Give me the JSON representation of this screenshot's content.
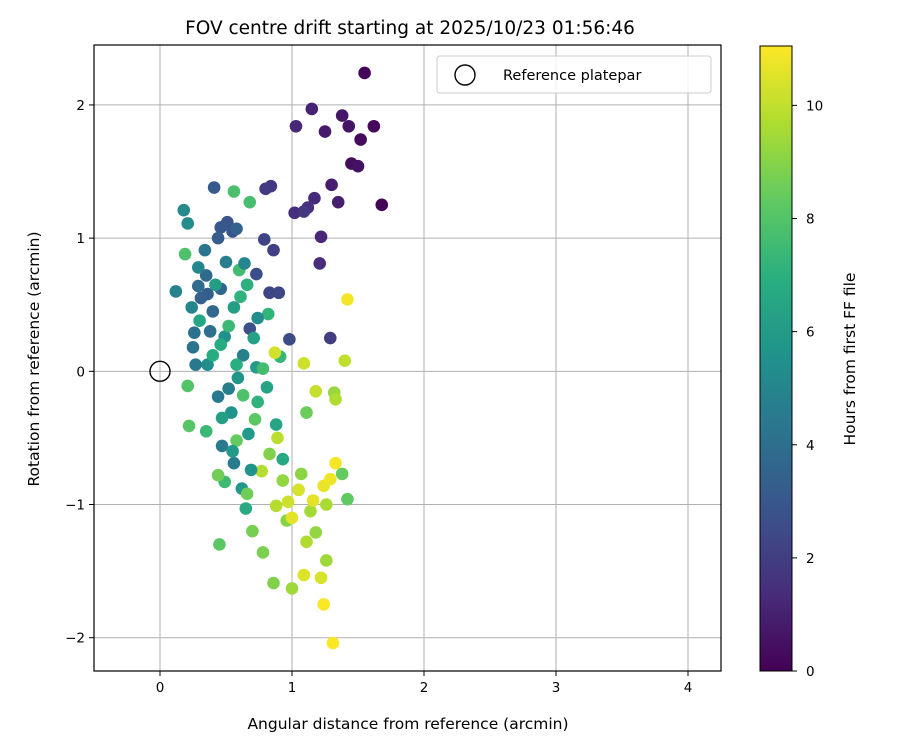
{
  "chart_data": {
    "type": "scatter",
    "title": "FOV centre drift starting at 2025/10/23 01:56:46",
    "xlabel": "Angular distance from reference (arcmin)",
    "ylabel": "Rotation from reference (arcmin)",
    "xlim": [
      -0.5,
      4.25
    ],
    "ylim": [
      -2.25,
      2.45
    ],
    "xticks": [
      0,
      1,
      2,
      3,
      4
    ],
    "yticks": [
      -2,
      -1,
      0,
      1,
      2
    ],
    "xtick_labels": [
      "0",
      "1",
      "2",
      "3",
      "4"
    ],
    "ytick_labels": [
      "−2",
      "−1",
      "0",
      "1",
      "2"
    ],
    "grid": true,
    "legend": {
      "placement": "top-right",
      "entries": [
        {
          "label": "Reference platepar",
          "marker": "open-circle"
        }
      ]
    },
    "reference_point": {
      "x": 0,
      "y": 0
    },
    "colorbar": {
      "label": "Hours from first FF file",
      "colormap": "viridis",
      "range": [
        0,
        11.05
      ],
      "ticks": [
        0,
        2,
        4,
        6,
        8,
        10
      ],
      "tick_labels": [
        "0",
        "2",
        "4",
        "6",
        "8",
        "10"
      ]
    },
    "points": [
      {
        "x": 1.55,
        "y": 2.24,
        "hours": 0.1
      },
      {
        "x": 1.68,
        "y": 1.25,
        "hours": 0.1
      },
      {
        "x": 1.62,
        "y": 1.84,
        "hours": 0.2
      },
      {
        "x": 1.52,
        "y": 1.74,
        "hours": 0.3
      },
      {
        "x": 1.45,
        "y": 1.56,
        "hours": 0.4
      },
      {
        "x": 1.5,
        "y": 1.54,
        "hours": 0.5
      },
      {
        "x": 1.43,
        "y": 1.84,
        "hours": 0.6
      },
      {
        "x": 1.38,
        "y": 1.92,
        "hours": 0.7
      },
      {
        "x": 1.25,
        "y": 1.8,
        "hours": 0.8
      },
      {
        "x": 1.3,
        "y": 1.4,
        "hours": 0.9
      },
      {
        "x": 1.35,
        "y": 1.27,
        "hours": 1.0
      },
      {
        "x": 1.15,
        "y": 1.97,
        "hours": 1.1
      },
      {
        "x": 1.03,
        "y": 1.84,
        "hours": 1.2
      },
      {
        "x": 1.22,
        "y": 1.01,
        "hours": 1.2
      },
      {
        "x": 1.17,
        "y": 1.3,
        "hours": 1.3
      },
      {
        "x": 1.21,
        "y": 0.81,
        "hours": 1.4
      },
      {
        "x": 1.12,
        "y": 1.23,
        "hours": 1.5
      },
      {
        "x": 1.02,
        "y": 1.19,
        "hours": 1.5
      },
      {
        "x": 1.09,
        "y": 1.2,
        "hours": 1.7
      },
      {
        "x": 0.84,
        "y": 1.39,
        "hours": 1.8
      },
      {
        "x": 0.8,
        "y": 1.37,
        "hours": 1.9
      },
      {
        "x": 1.29,
        "y": 0.25,
        "hours": 2.0
      },
      {
        "x": 0.86,
        "y": 0.91,
        "hours": 2.1
      },
      {
        "x": 0.79,
        "y": 0.99,
        "hours": 2.2
      },
      {
        "x": 0.83,
        "y": 0.59,
        "hours": 2.3
      },
      {
        "x": 0.9,
        "y": 0.59,
        "hours": 2.4
      },
      {
        "x": 0.98,
        "y": 0.24,
        "hours": 2.5
      },
      {
        "x": 0.73,
        "y": 0.73,
        "hours": 2.6
      },
      {
        "x": 0.68,
        "y": 0.32,
        "hours": 2.7
      },
      {
        "x": 0.55,
        "y": 1.05,
        "hours": 2.8
      },
      {
        "x": 0.51,
        "y": 1.12,
        "hours": 2.9
      },
      {
        "x": 0.46,
        "y": 1.08,
        "hours": 3.0
      },
      {
        "x": 0.41,
        "y": 1.38,
        "hours": 3.1
      },
      {
        "x": 0.44,
        "y": 1.0,
        "hours": 3.2
      },
      {
        "x": 0.36,
        "y": 0.58,
        "hours": 3.3
      },
      {
        "x": 0.31,
        "y": 0.55,
        "hours": 3.4
      },
      {
        "x": 0.58,
        "y": 1.07,
        "hours": 3.5
      },
      {
        "x": 0.46,
        "y": 0.62,
        "hours": 3.6
      },
      {
        "x": 0.4,
        "y": 0.45,
        "hours": 3.7
      },
      {
        "x": 0.35,
        "y": 0.72,
        "hours": 3.8
      },
      {
        "x": 0.29,
        "y": 0.64,
        "hours": 3.9
      },
      {
        "x": 0.38,
        "y": 0.3,
        "hours": 4.0
      },
      {
        "x": 0.26,
        "y": 0.29,
        "hours": 4.1
      },
      {
        "x": 0.25,
        "y": 0.18,
        "hours": 4.2
      },
      {
        "x": 0.34,
        "y": 0.91,
        "hours": 4.3
      },
      {
        "x": 0.44,
        "y": -0.19,
        "hours": 4.4
      },
      {
        "x": 0.47,
        "y": -0.56,
        "hours": 4.5
      },
      {
        "x": 0.56,
        "y": -0.69,
        "hours": 4.6
      },
      {
        "x": 0.52,
        "y": -0.13,
        "hours": 4.7
      },
      {
        "x": 0.63,
        "y": 0.12,
        "hours": 4.8
      },
      {
        "x": 0.12,
        "y": 0.6,
        "hours": 4.9
      },
      {
        "x": 0.24,
        "y": 0.48,
        "hours": 5.0
      },
      {
        "x": 0.29,
        "y": 0.78,
        "hours": 5.1
      },
      {
        "x": 0.18,
        "y": 1.21,
        "hours": 5.2
      },
      {
        "x": 0.21,
        "y": 1.11,
        "hours": 5.3
      },
      {
        "x": 0.36,
        "y": 0.05,
        "hours": 5.4
      },
      {
        "x": 0.49,
        "y": 0.26,
        "hours": 5.5
      },
      {
        "x": 0.54,
        "y": -0.31,
        "hours": 5.6
      },
      {
        "x": 0.59,
        "y": -0.05,
        "hours": 5.7
      },
      {
        "x": 0.62,
        "y": -0.88,
        "hours": 5.8
      },
      {
        "x": 0.67,
        "y": -0.47,
        "hours": 5.9
      },
      {
        "x": 0.73,
        "y": 0.03,
        "hours": 6.0
      },
      {
        "x": 0.42,
        "y": 0.65,
        "hours": 6.1
      },
      {
        "x": 0.56,
        "y": 0.48,
        "hours": 6.2
      },
      {
        "x": 0.71,
        "y": 0.25,
        "hours": 6.3
      },
      {
        "x": 0.81,
        "y": -0.12,
        "hours": 6.4
      },
      {
        "x": 0.88,
        "y": -0.4,
        "hours": 6.5
      },
      {
        "x": 0.93,
        "y": -0.66,
        "hours": 6.6
      },
      {
        "x": 0.65,
        "y": -1.03,
        "hours": 6.7
      },
      {
        "x": 0.46,
        "y": 0.2,
        "hours": 6.8
      },
      {
        "x": 0.58,
        "y": 0.05,
        "hours": 6.9
      },
      {
        "x": 0.66,
        "y": 0.65,
        "hours": 7.0
      },
      {
        "x": 0.74,
        "y": -0.23,
        "hours": 7.1
      },
      {
        "x": 0.82,
        "y": 0.43,
        "hours": 7.2
      },
      {
        "x": 0.91,
        "y": 0.11,
        "hours": 7.3
      },
      {
        "x": 0.35,
        "y": -0.45,
        "hours": 7.4
      },
      {
        "x": 0.49,
        "y": -0.83,
        "hours": 7.5
      },
      {
        "x": 0.6,
        "y": 0.76,
        "hours": 7.6
      },
      {
        "x": 0.68,
        "y": 1.27,
        "hours": 7.7
      },
      {
        "x": 0.56,
        "y": 1.35,
        "hours": 7.8
      },
      {
        "x": 0.19,
        "y": 0.88,
        "hours": 7.9
      },
      {
        "x": 0.21,
        "y": -0.11,
        "hours": 8.0
      },
      {
        "x": 0.22,
        "y": -0.41,
        "hours": 8.1
      },
      {
        "x": 0.45,
        "y": -1.3,
        "hours": 8.2
      },
      {
        "x": 1.42,
        "y": -0.96,
        "hours": 8.3
      },
      {
        "x": 1.38,
        "y": -0.77,
        "hours": 8.4
      },
      {
        "x": 1.11,
        "y": -0.31,
        "hours": 8.5
      },
      {
        "x": 0.44,
        "y": -0.78,
        "hours": 8.6
      },
      {
        "x": 0.7,
        "y": -1.2,
        "hours": 8.7
      },
      {
        "x": 0.78,
        "y": -1.36,
        "hours": 8.8
      },
      {
        "x": 0.86,
        "y": -1.59,
        "hours": 8.9
      },
      {
        "x": 0.96,
        "y": -1.12,
        "hours": 9.0
      },
      {
        "x": 1.07,
        "y": -0.77,
        "hours": 9.1
      },
      {
        "x": 1.18,
        "y": -1.21,
        "hours": 9.2
      },
      {
        "x": 1.32,
        "y": -0.16,
        "hours": 9.3
      },
      {
        "x": 1.0,
        "y": -1.63,
        "hours": 9.4
      },
      {
        "x": 1.14,
        "y": -1.05,
        "hours": 9.5
      },
      {
        "x": 1.26,
        "y": -1.0,
        "hours": 9.6
      },
      {
        "x": 1.33,
        "y": -0.21,
        "hours": 9.7
      },
      {
        "x": 0.77,
        "y": -0.75,
        "hours": 9.8
      },
      {
        "x": 0.89,
        "y": -0.5,
        "hours": 9.9
      },
      {
        "x": 1.4,
        "y": 0.08,
        "hours": 10.0
      },
      {
        "x": 1.18,
        "y": -0.15,
        "hours": 10.1
      },
      {
        "x": 1.09,
        "y": 0.06,
        "hours": 10.2
      },
      {
        "x": 0.87,
        "y": 0.14,
        "hours": 10.3
      },
      {
        "x": 1.22,
        "y": -1.55,
        "hours": 10.4
      },
      {
        "x": 1.09,
        "y": -1.53,
        "hours": 10.5
      },
      {
        "x": 1.0,
        "y": -1.1,
        "hours": 10.6
      },
      {
        "x": 1.24,
        "y": -0.86,
        "hours": 10.7
      },
      {
        "x": 1.29,
        "y": -0.81,
        "hours": 10.8
      },
      {
        "x": 1.42,
        "y": 0.54,
        "hours": 10.9
      },
      {
        "x": 1.24,
        "y": -1.75,
        "hours": 11.0
      },
      {
        "x": 1.31,
        "y": -2.04,
        "hours": 11.0
      },
      {
        "x": 1.33,
        "y": -0.69,
        "hours": 10.9
      },
      {
        "x": 1.16,
        "y": -0.97,
        "hours": 10.6
      },
      {
        "x": 1.05,
        "y": -0.89,
        "hours": 10.4
      },
      {
        "x": 0.97,
        "y": -0.98,
        "hours": 10.2
      },
      {
        "x": 0.88,
        "y": -1.01,
        "hours": 9.8
      },
      {
        "x": 1.11,
        "y": -1.28,
        "hours": 9.7
      },
      {
        "x": 1.26,
        "y": -1.42,
        "hours": 9.4
      },
      {
        "x": 0.93,
        "y": -0.82,
        "hours": 9.2
      },
      {
        "x": 0.83,
        "y": -0.62,
        "hours": 8.9
      },
      {
        "x": 0.66,
        "y": -0.92,
        "hours": 8.6
      },
      {
        "x": 0.58,
        "y": -0.52,
        "hours": 8.4
      },
      {
        "x": 0.72,
        "y": -0.36,
        "hours": 8.2
      },
      {
        "x": 0.63,
        "y": -0.18,
        "hours": 7.9
      },
      {
        "x": 0.78,
        "y": 0.02,
        "hours": 7.6
      },
      {
        "x": 0.52,
        "y": 0.34,
        "hours": 7.4
      },
      {
        "x": 0.61,
        "y": 0.56,
        "hours": 7.1
      },
      {
        "x": 0.4,
        "y": 0.12,
        "hours": 6.8
      },
      {
        "x": 0.3,
        "y": 0.38,
        "hours": 6.5
      },
      {
        "x": 0.47,
        "y": -0.35,
        "hours": 6.2
      },
      {
        "x": 0.55,
        "y": -0.6,
        "hours": 5.9
      },
      {
        "x": 0.69,
        "y": -0.74,
        "hours": 5.6
      },
      {
        "x": 0.74,
        "y": 0.4,
        "hours": 5.3
      },
      {
        "x": 0.64,
        "y": 0.81,
        "hours": 5.0
      },
      {
        "x": 0.5,
        "y": 0.82,
        "hours": 4.7
      },
      {
        "x": 0.27,
        "y": 0.05,
        "hours": 4.4
      }
    ]
  }
}
